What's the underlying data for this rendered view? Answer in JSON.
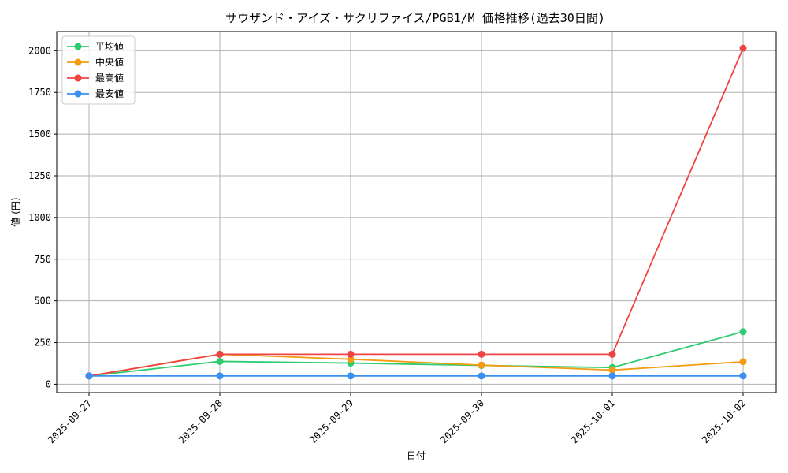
{
  "chart_data": {
    "type": "line",
    "title": "サウザンド・アイズ・サクリファイス/PGB1/M 価格推移(過去30日間)",
    "xlabel": "日付",
    "ylabel": "値 (円)",
    "categories": [
      "2025-09-27",
      "2025-09-28",
      "2025-09-29",
      "2025-09-30",
      "2025-10-01",
      "2025-10-02"
    ],
    "ylim": [
      -50,
      2115
    ],
    "yticks": [
      0,
      250,
      500,
      750,
      1000,
      1250,
      1500,
      1750,
      2000
    ],
    "grid": true,
    "legend_position": "top-left",
    "series": [
      {
        "name": "平均値",
        "color": "#2ecc71",
        "values": [
          50,
          137,
          127,
          113,
          100,
          315
        ]
      },
      {
        "name": "中央値",
        "color": "#f39c12",
        "values": [
          50,
          180,
          150,
          115,
          85,
          135
        ]
      },
      {
        "name": "最高値",
        "color": "#ef4444",
        "values": [
          50,
          180,
          180,
          180,
          180,
          2015
        ]
      },
      {
        "name": "最安値",
        "color": "#3b8ff0",
        "values": [
          50,
          50,
          50,
          50,
          50,
          50
        ]
      }
    ]
  }
}
